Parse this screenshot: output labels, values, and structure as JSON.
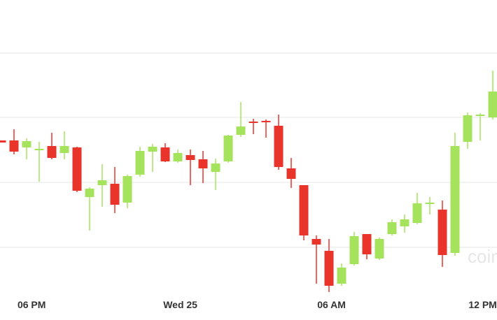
{
  "chart_data": {
    "type": "candlestick",
    "categories": [
      null,
      null,
      null,
      null,
      null,
      null,
      null,
      null,
      null,
      null,
      null,
      null,
      null,
      null,
      null,
      null,
      null,
      null,
      null,
      null,
      null,
      null,
      null,
      null,
      null,
      null,
      null,
      null,
      null,
      null,
      null,
      null,
      null,
      null,
      null,
      null,
      null,
      null,
      null,
      null
    ],
    "open": [
      257,
      257,
      247,
      243,
      249,
      239,
      247,
      176,
      193,
      195,
      168,
      208,
      241,
      247,
      227,
      236,
      230,
      212,
      227,
      265,
      284,
      285,
      278,
      217,
      193,
      116,
      99,
      52,
      80,
      123,
      88,
      123,
      134,
      139,
      166,
      158,
      96,
      255,
      292,
      290
    ],
    "high": [
      257,
      273,
      260,
      255,
      268,
      270,
      248,
      190,
      223,
      219,
      208,
      248,
      252,
      253,
      244,
      244,
      242,
      231,
      265,
      312,
      288,
      287,
      294,
      232,
      193,
      121,
      116,
      81,
      126,
      123,
      118,
      144,
      151,
      182,
      176,
      171,
      268,
      297,
      296,
      357
    ],
    "low": [
      254,
      237,
      230,
      198,
      230,
      230,
      183,
      128,
      162,
      153,
      160,
      205,
      212,
      226,
      225,
      193,
      196,
      186,
      225,
      262,
      266,
      261,
      215,
      189,
      114,
      52,
      40,
      49,
      78,
      87,
      86,
      121,
      125,
      137,
      151,
      76,
      92,
      245,
      257,
      287
    ],
    "close": [
      254,
      241,
      256,
      245,
      232,
      249,
      185,
      188,
      200,
      165,
      206,
      242,
      248,
      227,
      239,
      229,
      217,
      224,
      264,
      277,
      282,
      283,
      219,
      202,
      121,
      108,
      49,
      75,
      120,
      94,
      116,
      140,
      144,
      167,
      168,
      93,
      249,
      293,
      294,
      327
    ],
    "up_color": "#a5e35d",
    "down_color": "#e8342b",
    "xlim": [
      -0.111,
      39.333
    ],
    "xticks": [
      {
        "value": 2.4,
        "label": "06 PM"
      },
      {
        "value": 14.2,
        "label": "Wed 25"
      },
      {
        "value": 26.2,
        "label": "06 AM"
      },
      {
        "value": 38.2,
        "label": "12 PM"
      }
    ],
    "ylim": [
      0,
      458
    ],
    "yticks": [
      104,
      197,
      290,
      382
    ],
    "ytick_labels": false,
    "grid": true,
    "watermark": "coin"
  }
}
